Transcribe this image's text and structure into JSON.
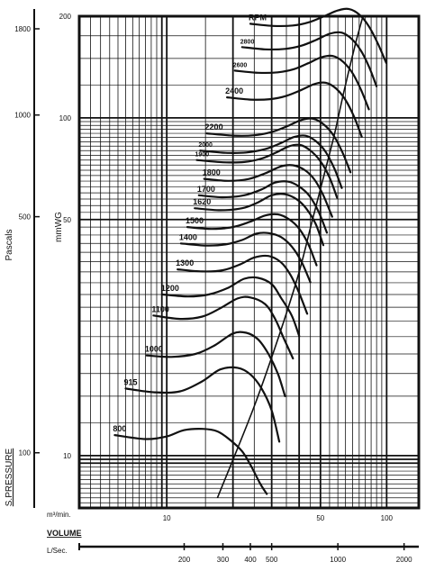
{
  "chart_data": {
    "type": "line",
    "title": "",
    "left_axis": {
      "name": "Pascals",
      "ticks": [
        {
          "label": "1800",
          "value": 1800
        },
        {
          "label": "1000",
          "value": 1000
        },
        {
          "label": "500",
          "value": 500
        },
        {
          "label": "100",
          "value": 100
        }
      ]
    },
    "ylabel": "mmWG",
    "ylabel_bottom": "S.PRESSURE",
    "y_scale": "log",
    "ylim": [
      7,
      200
    ],
    "y_ticks": [
      {
        "label": "200",
        "value": 200
      },
      {
        "label": "100",
        "value": 100
      },
      {
        "label": "50",
        "value": 50
      },
      {
        "label": "10",
        "value": 10
      }
    ],
    "xlabel": "VOLUME",
    "x_scale": "log",
    "xlim": [
      4,
      140
    ],
    "x_unit_top": "m³/min.",
    "x_ticks": [
      {
        "label": "10",
        "value": 10
      },
      {
        "label": "50",
        "value": 50
      },
      {
        "label": "100",
        "value": 100
      }
    ],
    "x_unit_bottom": "L/Sec.",
    "lsec_ticks": [
      {
        "label": "200",
        "value": 200
      },
      {
        "label": "300",
        "value": 300
      },
      {
        "label": "400",
        "value": 400
      },
      {
        "label": "500",
        "value": 500
      },
      {
        "label": "1000",
        "value": 1000
      },
      {
        "label": "2000",
        "value": 2000
      }
    ],
    "rpm_header": "RPM",
    "series": [
      {
        "name": "800",
        "x": [
          5.8,
          8,
          10,
          12,
          14.5,
          17,
          19.5,
          22,
          24,
          26.5,
          28.5
        ],
        "y": [
          11.5,
          11.2,
          11.4,
          11.9,
          12,
          11.8,
          11.1,
          10.3,
          9.4,
          8.3,
          7.7
        ]
      },
      {
        "name": "915",
        "x": [
          6.5,
          8.8,
          11.5,
          14.5,
          17.5,
          21,
          24,
          27,
          30,
          32.5
        ],
        "y": [
          15.8,
          15.4,
          15.5,
          16.6,
          18,
          18.2,
          17.4,
          15.8,
          13.6,
          11
        ]
      },
      {
        "name": "1000",
        "x": [
          8.1,
          10.5,
          13.5,
          16.5,
          20,
          23,
          26,
          29,
          32,
          34.5
        ],
        "y": [
          19.8,
          19.6,
          20,
          21.2,
          23,
          23.1,
          22.1,
          20,
          17.5,
          15
        ]
      },
      {
        "name": "1100",
        "x": [
          8.7,
          11.5,
          14.5,
          17.5,
          21,
          24,
          28,
          31,
          34,
          37.5
        ],
        "y": [
          26,
          25.4,
          25.8,
          27.3,
          29.2,
          29.4,
          28.1,
          25.5,
          22.3,
          19.4
        ]
      },
      {
        "name": "1200",
        "x": [
          9.6,
          12.5,
          15.5,
          19,
          22.5,
          26,
          30,
          33,
          37,
          40
        ],
        "y": [
          30,
          29.6,
          30,
          31.4,
          33.4,
          33.6,
          32.2,
          29.4,
          26,
          22.6
        ]
      },
      {
        "name": "1300",
        "x": [
          11.2,
          14.5,
          18,
          21.5,
          25,
          29,
          33,
          36.5,
          40,
          43.5
        ],
        "y": [
          35.6,
          35.1,
          35.4,
          36.8,
          38.6,
          39,
          37.4,
          34.3,
          30.3,
          26.3
        ]
      },
      {
        "name": "1400",
        "x": [
          11.6,
          15,
          18.5,
          22,
          25.5,
          29,
          33,
          37,
          41,
          45
        ],
        "y": [
          42.5,
          41.9,
          42.2,
          43.5,
          45.4,
          45.6,
          44.4,
          41.6,
          37.5,
          32.6
        ]
      },
      {
        "name": "1500",
        "x": [
          12.4,
          16,
          20,
          24,
          28,
          32,
          36,
          40,
          44,
          48
        ],
        "y": [
          47.5,
          46.9,
          47.5,
          49.3,
          51.4,
          51.8,
          50.1,
          47,
          42.3,
          36.6
        ]
      },
      {
        "name": "1620",
        "x": [
          13.4,
          17.5,
          22,
          26,
          30,
          34.5,
          39,
          43,
          47.5,
          51.5
        ],
        "y": [
          54,
          53.3,
          54,
          56.2,
          59,
          59.4,
          57.4,
          54,
          48.6,
          42
        ]
      },
      {
        "name": "1700",
        "x": [
          14,
          18,
          22.5,
          27,
          31,
          35.5,
          40,
          44.5,
          49,
          53.5
        ],
        "y": [
          59,
          58.2,
          59,
          61.4,
          64.3,
          64.8,
          62.6,
          58.8,
          52.8,
          45.7
        ]
      },
      {
        "name": "1800",
        "x": [
          14.8,
          19,
          23.5,
          28,
          33,
          37.5,
          42.5,
          47,
          51.5,
          56.5
        ],
        "y": [
          66,
          65.1,
          65.9,
          68.5,
          71.8,
          72.4,
          70,
          65.6,
          59,
          51
        ]
      },
      {
        "name": "1900",
        "x": [
          13.7,
          18,
          22.5,
          27,
          31.5,
          36,
          40.5,
          45,
          50,
          55,
          59.5
        ],
        "y": [
          75,
          73.9,
          74,
          75.8,
          79,
          82.4,
          83.1,
          80,
          74.4,
          66.6,
          58
        ]
      },
      {
        "name": "2000",
        "x": [
          14.2,
          18.5,
          23,
          28,
          33,
          38,
          43,
          48,
          53,
          58,
          62.5
        ],
        "y": [
          80,
          78.8,
          79,
          80.8,
          84.2,
          87.8,
          88.5,
          85,
          79,
          70.5,
          62
        ]
      },
      {
        "name": "2200",
        "x": [
          15.2,
          20,
          25,
          30,
          35.5,
          41,
          46.5,
          52,
          57.5,
          63,
          68.5
        ],
        "y": [
          90,
          88.6,
          88.8,
          90.8,
          94.6,
          98.6,
          99.4,
          95.4,
          88.5,
          79,
          69
        ]
      },
      {
        "name": "2400",
        "x": [
          18.8,
          24,
          29.5,
          35,
          41,
          47,
          53,
          59,
          65,
          71,
          77
        ],
        "y": [
          115,
          113.3,
          113.6,
          116.2,
          121,
          126,
          127,
          122,
          113,
          101,
          88
        ]
      },
      {
        "name": "2600",
        "x": [
          20.4,
          26,
          32,
          38,
          44,
          50.5,
          57,
          63.5,
          70,
          76.5,
          83
        ],
        "y": [
          138,
          136,
          136.4,
          139.5,
          145.2,
          151.2,
          152.5,
          146.4,
          135.6,
          121,
          106
        ]
      },
      {
        "name": "2800",
        "x": [
          22,
          28,
          34.5,
          41,
          48,
          55,
          62,
          69,
          76,
          83,
          90
        ],
        "y": [
          162,
          159.6,
          160,
          163.6,
          170.4,
          177.4,
          179,
          171.8,
          159,
          142,
          124
        ]
      },
      {
        "name": "",
        "x": [
          24,
          30.5,
          37.5,
          44.5,
          52,
          60,
          67.5,
          75.5,
          83,
          91,
          99.5
        ],
        "y": [
          190,
          187.2,
          187.7,
          192,
          200,
          208,
          210,
          201.6,
          186.6,
          166.6,
          145.5
        ]
      }
    ],
    "system_line": {
      "x": [
        17,
        25,
        33,
        40,
        46,
        52,
        58,
        64,
        72,
        78
      ],
      "y": [
        7.5,
        14,
        23.5,
        35,
        50,
        68,
        90,
        120,
        165,
        200
      ]
    }
  }
}
